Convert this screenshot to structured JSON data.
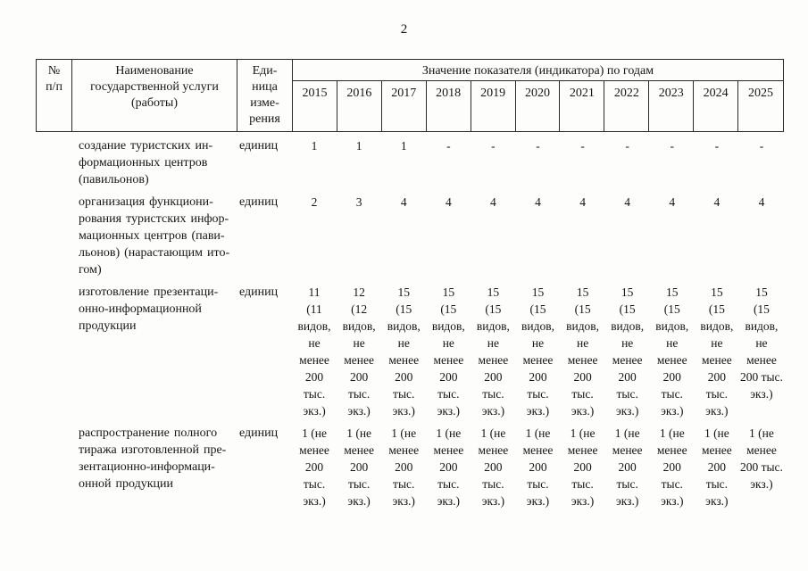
{
  "page": {
    "number": "2"
  },
  "table": {
    "header": {
      "num": "№\nп/п",
      "name": "Наименование\nгосударственной услуги\n(работы)",
      "unit": "Еди-\nница\nизме-\nрения",
      "group": "Значение показателя (индикатора) по годам",
      "years": [
        "2015",
        "2016",
        "2017",
        "2018",
        "2019",
        "2020",
        "2021",
        "2022",
        "2023",
        "2024",
        "2025"
      ]
    },
    "rows": [
      {
        "name": "создание туристских ин-\nформационных центров\n(павильонов)",
        "unit": "единиц",
        "values": [
          "1",
          "1",
          "1",
          "-",
          "-",
          "-",
          "-",
          "-",
          "-",
          "-",
          "-"
        ]
      },
      {
        "name": "организация функциони-\nрования туристских инфор-\nмационных центров (пави-\nльонов) (нарастающим ито-\nгом)",
        "unit": "единиц",
        "values": [
          "2",
          "3",
          "4",
          "4",
          "4",
          "4",
          "4",
          "4",
          "4",
          "4",
          "4"
        ]
      },
      {
        "name": "изготовление презентаци-\nонно-информационной\nпродукции",
        "unit": "единиц",
        "values": [
          "11\n(11\nвидов,\nне\nменее\n200\nтыс.\nэкз.)",
          "12\n(12\nвидов,\nне\nменее\n200\nтыс.\nэкз.)",
          "15\n(15\nвидов,\nне\nменее\n200\nтыс.\nэкз.)",
          "15\n(15\nвидов,\nне\nменее\n200\nтыс.\nэкз.)",
          "15\n(15\nвидов,\nне\nменее\n200\nтыс.\nэкз.)",
          "15\n(15\nвидов,\nне\nменее\n200\nтыс.\nэкз.)",
          "15\n(15\nвидов,\nне\nменее\n200\nтыс.\nэкз.)",
          "15\n(15\nвидов,\nне\nменее\n200\nтыс.\nэкз.)",
          "15\n(15\nвидов,\nне\nменее\n200\nтыс.\nэкз.)",
          "15\n(15\nвидов,\nне\nменее\n200\nтыс.\nэкз.)",
          "15\n(15\nвидов,\nне\nменее\n200 тыс.\nэкз.)"
        ]
      },
      {
        "name": "распространение полного\nтиража изготовленной пре-\nзентационно-информаци-\nонной продукции",
        "unit": "единиц",
        "values": [
          "1 (не\nменее\n200\nтыс.\nэкз.)",
          "1 (не\nменее\n200\nтыс.\nэкз.)",
          "1 (не\nменее\n200\nтыс.\nэкз.)",
          "1 (не\nменее\n200\nтыс.\nэкз.)",
          "1 (не\nменее\n200\nтыс.\nэкз.)",
          "1 (не\nменее\n200\nтыс.\nэкз.)",
          "1 (не\nменее\n200\nтыс.\nэкз.)",
          "1 (не\nменее\n200\nтыс.\nэкз.)",
          "1 (не\nменее\n200\nтыс.\nэкз.)",
          "1 (не\nменее\n200\nтыс.\nэкз.)",
          "1 (не\nменее\n200 тыс.\nэкз.)"
        ]
      }
    ]
  }
}
